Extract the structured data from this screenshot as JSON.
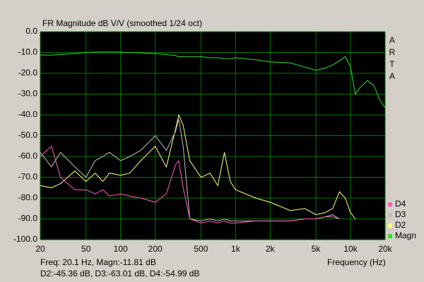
{
  "chart_data": {
    "type": "line",
    "title": "FR Magnitude dB V/V (smoothed 1/24 oct)",
    "side_label": "ARTA",
    "x_label": "Frequency (Hz)",
    "cursor_readout": [
      "Freq: 20.1 Hz, Magn:-11.81 dB",
      "D2:-45.36 dB, D3:-63.01 dB, D4:-54.99 dB"
    ],
    "x_log": true,
    "grid": true,
    "legend": "right-bottom",
    "xlim": [
      20,
      20000
    ],
    "ylim": [
      -100,
      0
    ],
    "xticks": [
      20,
      50,
      100,
      200,
      500,
      {
        "value": 1000,
        "label": "1k"
      },
      {
        "value": 2000,
        "label": "2k"
      },
      {
        "value": 5000,
        "label": "5k"
      },
      {
        "value": 10000,
        "label": "10k"
      },
      {
        "value": 20000,
        "label": "20k"
      }
    ],
    "yticks": [
      {
        "value": -100,
        "label": "-100.0"
      },
      {
        "value": -90,
        "label": "-90.0"
      },
      {
        "value": -80,
        "label": "-80.0"
      },
      {
        "value": -70,
        "label": "-70.0"
      },
      {
        "value": -60,
        "label": "-60.0"
      },
      {
        "value": -50,
        "label": "-50.0"
      },
      {
        "value": -40,
        "label": "-40.0"
      },
      {
        "value": -30,
        "label": "-30.0"
      },
      {
        "value": -20,
        "label": "-20.0"
      },
      {
        "value": -10,
        "label": "-10.0"
      },
      {
        "value": 0,
        "label": "0.0"
      }
    ],
    "x": [
      20,
      25,
      30,
      40,
      50,
      60,
      70,
      80,
      100,
      120,
      150,
      200,
      250,
      300,
      320,
      350,
      400,
      500,
      600,
      700,
      800,
      900,
      1000,
      1500,
      2000,
      3000,
      4000,
      5000,
      6000,
      7000,
      8000,
      9000,
      10000,
      11000,
      12000,
      14000,
      16000,
      18000,
      20000
    ],
    "series": [
      {
        "name": "Magn",
        "color": "#30e030",
        "values": [
          -11.2,
          -11.3,
          -11,
          -10.5,
          -10,
          -9.8,
          -9.8,
          -9.8,
          -9.8,
          -10,
          -10.2,
          -10.5,
          -11,
          -11.5,
          -12,
          -12,
          -12,
          -12,
          -12.5,
          -12.5,
          -13,
          -13,
          -12.5,
          -13.5,
          -14.5,
          -15,
          -17,
          -18.5,
          -17.5,
          -16,
          -14,
          -12,
          -17,
          -30,
          -27,
          -23.5,
          -26,
          -33,
          -36.5
        ]
      },
      {
        "name": "D2",
        "color": "#ffff80",
        "values": [
          -74,
          -75,
          -73,
          -67,
          -72,
          -68,
          -72,
          -68,
          -69,
          -68,
          -62,
          -55,
          -65,
          -47,
          -40,
          -45,
          -62,
          -70,
          -68,
          -74,
          -58,
          -72,
          -76,
          -80,
          -82,
          -86,
          -85,
          -88,
          -87,
          -85,
          -77,
          -80,
          -87,
          -90,
          null,
          null,
          null,
          null,
          null
        ]
      },
      {
        "name": "D3",
        "color": "#c0c0c0",
        "values": [
          -58,
          -65,
          -58,
          -65,
          -70,
          -62,
          -60,
          -58,
          -62,
          -60,
          -57,
          -50,
          -57,
          -48,
          -42,
          -55,
          -90,
          -91,
          -90,
          -91,
          -90,
          -91,
          -91,
          -91,
          -91,
          -91,
          -90,
          -90,
          -89,
          -88,
          -90,
          null,
          null,
          null,
          null,
          null,
          null,
          null,
          null
        ]
      },
      {
        "name": "D4",
        "color": "#ff60c0",
        "values": [
          -60,
          -55,
          -70,
          -76,
          -76,
          -78,
          -76,
          -79,
          -78,
          -79,
          -80,
          -82,
          -78,
          -64,
          -62,
          -75,
          -90,
          -92,
          -91,
          -92,
          -91,
          -92,
          -92,
          -91,
          -91,
          -91,
          -90,
          -90,
          -89,
          -89,
          -90,
          null,
          null,
          null,
          null,
          null,
          null,
          null,
          null
        ]
      }
    ]
  }
}
